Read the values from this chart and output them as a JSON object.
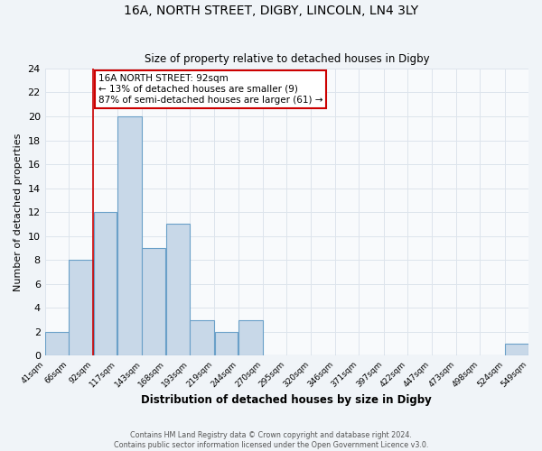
{
  "title": "16A, NORTH STREET, DIGBY, LINCOLN, LN4 3LY",
  "subtitle": "Size of property relative to detached houses in Digby",
  "xlabel": "Distribution of detached houses by size in Digby",
  "ylabel": "Number of detached properties",
  "bar_edges": [
    41,
    66,
    92,
    117,
    143,
    168,
    193,
    219,
    244,
    270,
    295,
    320,
    346,
    371,
    397,
    422,
    447,
    473,
    498,
    524,
    549
  ],
  "bar_heights": [
    2,
    8,
    12,
    20,
    9,
    11,
    3,
    2,
    3,
    0,
    0,
    0,
    0,
    0,
    0,
    0,
    0,
    0,
    0,
    1
  ],
  "bar_color": "#c8d8e8",
  "bar_edge_color": "#6aa0c8",
  "property_line_x": 92,
  "property_line_color": "#cc0000",
  "annotation_line1": "16A NORTH STREET: 92sqm",
  "annotation_line2": "← 13% of detached houses are smaller (9)",
  "annotation_line3": "87% of semi-detached houses are larger (61) →",
  "annotation_box_color": "#ffffff",
  "annotation_box_edge_color": "#cc0000",
  "ylim": [
    0,
    24
  ],
  "yticks": [
    0,
    2,
    4,
    6,
    8,
    10,
    12,
    14,
    16,
    18,
    20,
    22,
    24
  ],
  "tick_labels": [
    "41sqm",
    "66sqm",
    "92sqm",
    "117sqm",
    "143sqm",
    "168sqm",
    "193sqm",
    "219sqm",
    "244sqm",
    "270sqm",
    "295sqm",
    "320sqm",
    "346sqm",
    "371sqm",
    "397sqm",
    "422sqm",
    "447sqm",
    "473sqm",
    "498sqm",
    "524sqm",
    "549sqm"
  ],
  "footer_line1": "Contains HM Land Registry data © Crown copyright and database right 2024.",
  "footer_line2": "Contains public sector information licensed under the Open Government Licence v3.0.",
  "bg_color": "#f0f4f8",
  "plot_bg_color": "#f8fafc",
  "grid_color": "#dde4ec"
}
